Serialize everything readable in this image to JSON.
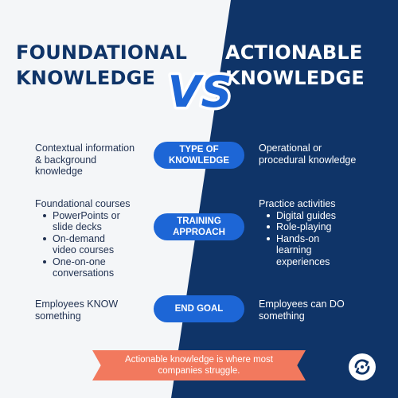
{
  "header": {
    "left_title_line1": "FOUNDATIONAL",
    "left_title_line2": "KNOWLEDGE",
    "vs_label": "VS",
    "right_title_line1": "ACTIONABLE",
    "right_title_line2": "KNOWLEDGE"
  },
  "rows": [
    {
      "pill_line1": "TYPE OF",
      "pill_line2": "KNOWLEDGE",
      "left_line1": "Contextual information",
      "left_line2": "& background",
      "left_line3": "knowledge",
      "right_line1": "Operational or",
      "right_line2": "procedural knowledge"
    },
    {
      "pill_line1": "TRAINING",
      "pill_line2": "APPROACH",
      "left_intro": "Foundational courses",
      "left_items": [
        "PowerPoints or slide decks",
        "On-demand video courses",
        "One-on-one conversations"
      ],
      "right_intro": "Practice activities",
      "right_items": [
        "Digital guides",
        "Role-playing",
        "Hands-on learning experiences"
      ]
    },
    {
      "pill_line1": "END GOAL",
      "left_line1": "Employees KNOW",
      "left_line2": "something",
      "right_line1": "Employees can DO",
      "right_line2": "something"
    }
  ],
  "banner": {
    "text": "Actionable knowledge is where most companies struggle."
  },
  "colors": {
    "navy": "#0f3468",
    "blue_pill": "#1d66d6",
    "banner": "#f2795e",
    "light_bg": "#f4f6f8"
  },
  "icons": {
    "logo": "circular-arrows-logo-icon"
  }
}
